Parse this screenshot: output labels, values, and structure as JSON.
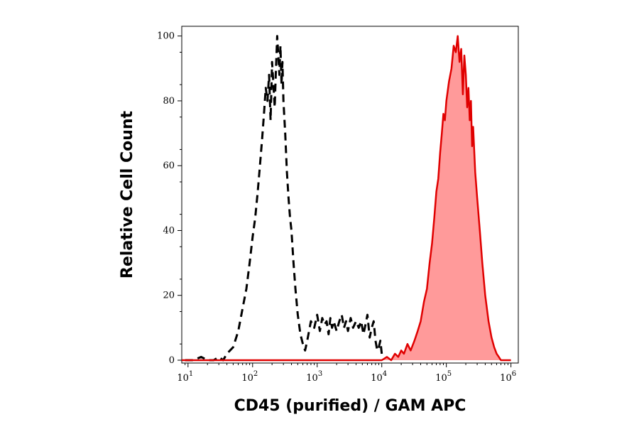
{
  "chart_data": {
    "type": "area",
    "title": "",
    "xlabel": "CD45 (purified) / GAM APC",
    "ylabel": "Relative Cell Count",
    "x_scale": "log10",
    "xlim": [
      8,
      1300000
    ],
    "ylim": [
      0,
      103
    ],
    "x_ticks": [
      {
        "value": 10,
        "base": "10",
        "exp": "1"
      },
      {
        "value": 100,
        "base": "10",
        "exp": "2"
      },
      {
        "value": 1000,
        "base": "10",
        "exp": "3"
      },
      {
        "value": 10000,
        "base": "10",
        "exp": "4"
      },
      {
        "value": 100000,
        "base": "10",
        "exp": "5"
      },
      {
        "value": 1000000,
        "base": "10",
        "exp": "6"
      }
    ],
    "y_ticks": [
      0,
      20,
      40,
      60,
      80,
      100
    ],
    "grid": false,
    "legend": "none",
    "series": [
      {
        "style": "dashed",
        "color": "#000000",
        "fill": "none",
        "x": [
          9,
          12,
          16,
          20,
          25,
          30,
          35,
          40,
          50,
          60,
          70,
          80,
          90,
          100,
          110,
          120,
          130,
          140,
          150,
          160,
          170,
          180,
          190,
          200,
          210,
          220,
          230,
          240,
          250,
          260,
          270,
          280,
          290,
          300,
          320,
          340,
          360,
          380,
          400,
          430,
          460,
          500,
          550,
          600,
          650,
          700,
          800,
          900,
          1000,
          1100,
          1200,
          1300,
          1400,
          1500,
          1600,
          1700,
          1800,
          2000,
          2200,
          2400,
          2600,
          2800,
          3000,
          3300,
          3600,
          4000,
          4400,
          4800,
          5200,
          5600,
          6000,
          6500,
          7000,
          7500,
          8000,
          8500,
          9000,
          9500,
          10000
        ],
        "y": [
          0,
          0,
          1,
          0,
          0,
          1,
          0,
          2,
          4,
          9,
          16,
          22,
          30,
          38,
          44,
          52,
          60,
          68,
          76,
          84,
          80,
          88,
          74,
          92,
          85,
          78,
          90,
          100,
          94,
          88,
          97,
          85,
          92,
          80,
          70,
          58,
          50,
          44,
          40,
          30,
          22,
          14,
          8,
          5,
          3,
          6,
          12,
          10,
          14,
          9,
          13,
          11,
          12,
          8,
          13,
          10,
          12,
          9,
          12,
          14,
          10,
          12,
          9,
          13,
          10,
          12,
          10,
          12,
          8,
          11,
          14,
          7,
          10,
          12,
          6,
          3,
          4,
          6,
          2
        ]
      },
      {
        "style": "solid",
        "color": "#e00000",
        "fill": "#ff9a9a",
        "x": [
          8,
          10000,
          12000,
          14000,
          16000,
          18000,
          20000,
          22000,
          25000,
          28000,
          32000,
          36000,
          40000,
          45000,
          50000,
          55000,
          60000,
          65000,
          70000,
          75000,
          80000,
          85000,
          90000,
          95000,
          100000,
          110000,
          120000,
          130000,
          140000,
          150000,
          160000,
          170000,
          180000,
          190000,
          200000,
          210000,
          220000,
          230000,
          240000,
          250000,
          260000,
          280000,
          300000,
          330000,
          360000,
          400000,
          450000,
          500000,
          550000,
          600000,
          650000,
          700000,
          800000,
          900000,
          1000000
        ],
        "y": [
          0,
          0,
          1,
          0,
          2,
          1,
          3,
          2,
          5,
          3,
          6,
          9,
          12,
          18,
          22,
          30,
          36,
          44,
          52,
          56,
          64,
          70,
          76,
          74,
          80,
          86,
          90,
          97,
          95,
          100,
          92,
          96,
          82,
          94,
          88,
          78,
          84,
          74,
          80,
          66,
          72,
          58,
          50,
          40,
          30,
          20,
          12,
          7,
          4,
          2,
          1,
          0,
          0,
          0,
          0
        ]
      }
    ]
  }
}
